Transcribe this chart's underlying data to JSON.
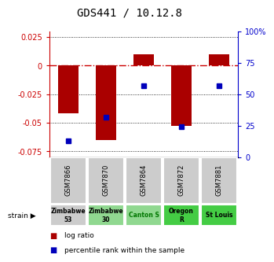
{
  "title": "GDS441 / 10.12.8",
  "samples": [
    "GSM7866",
    "GSM7870",
    "GSM7864",
    "GSM7872",
    "GSM7881"
  ],
  "log_ratios": [
    -0.042,
    -0.065,
    0.01,
    -0.053,
    0.01
  ],
  "percentiles": [
    13,
    32,
    57,
    24,
    57
  ],
  "ylim": [
    -0.08,
    0.03
  ],
  "yticks_left": [
    0.025,
    0,
    -0.025,
    -0.05,
    -0.075
  ],
  "yticks_right": [
    100,
    75,
    50,
    25,
    0
  ],
  "strains": [
    "Zimbabwe\n53",
    "Zimbabwe\n30",
    "Canton S",
    "Oregon\nR",
    "St Louis"
  ],
  "strain_colors": [
    "#cccccc",
    "#90d890",
    "#90d890",
    "#44cc44",
    "#44cc44"
  ],
  "strain_text_colors": [
    "#000000",
    "#000000",
    "#007700",
    "#000000",
    "#000000"
  ],
  "bar_color": "#aa0000",
  "dot_color": "#0000bb",
  "zero_line_color": "#cc0000",
  "left_axis_color": "#cc0000",
  "right_axis_color": "#0000cc",
  "sample_box_color": "#cccccc"
}
